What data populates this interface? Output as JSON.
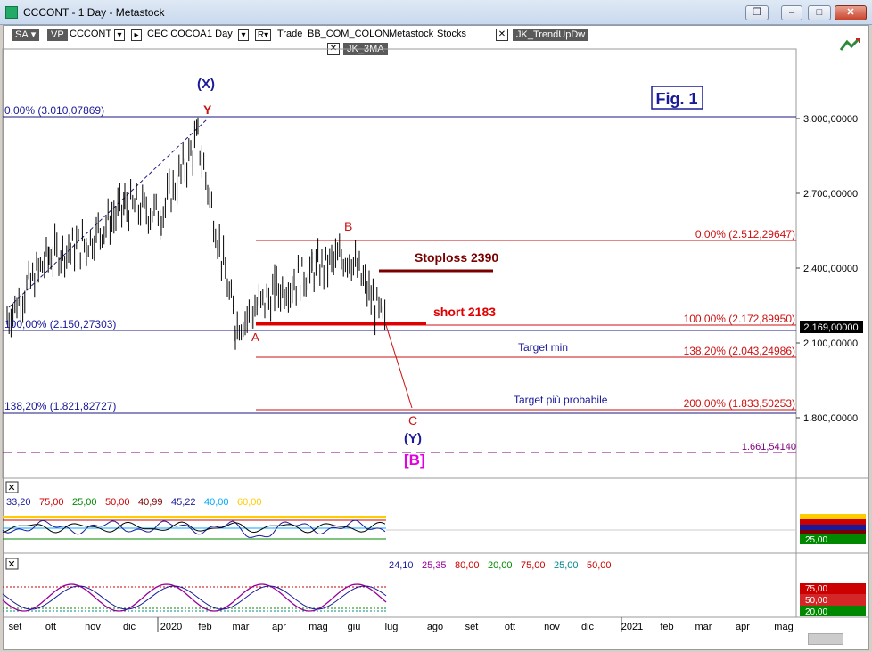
{
  "window": {
    "title": "CCCONT - 1 Day - Metastock",
    "buttons": [
      "restore-icon",
      "minimize-icon",
      "maximize-icon",
      "close-icon"
    ]
  },
  "toolbar": {
    "sa": "SA",
    "vp": "VP",
    "symbol": "CCCONT",
    "name": "CEC COCOA",
    "period": "1 Day",
    "r": "R",
    "trade": "Trade",
    "bb": "BB_COM_COLON",
    "metastock": "Metastock",
    "stocks": "Stocks",
    "expert1": "JK_TrendUpDw",
    "expert2": "JK_3MA",
    "close_glyph": "✕"
  },
  "annotations": {
    "fig": "Fig. 1",
    "wave_x": "(X)",
    "wave_y_top": "Y",
    "wave_a": "A",
    "wave_b": "B",
    "wave_c": "C",
    "wave_y_paren": "(Y)",
    "wave_b_bracket": "[B]",
    "stoploss": "Stoploss 2390",
    "short": "short 2183",
    "target_min": "Target min",
    "target_prob": "Target più probabile",
    "fib_0_left": "0,00% (3.010,07869)",
    "fib_100_left": "100,00% (2.150,27303)",
    "fib_138_left": "138,20% (1.821,82727)",
    "fib_0_right": "0,00% (2.512,29647)",
    "fib_100_right": "100,00% (2.172,89950)",
    "fib_138_right": "138,20% (2.043,24986)",
    "fib_200_right": "200,00% (1.833,50253)",
    "dashed_level": "1.661,54140"
  },
  "price_axis": {
    "ticks": [
      "3.000,00000",
      "2.700,00000",
      "2.400,00000",
      "2.100,00000",
      "1.800,00000"
    ],
    "current": "2.169,00000"
  },
  "indicator1": {
    "values": [
      "33,20",
      "75,00",
      "25,00",
      "50,00",
      "40,99",
      "45,22",
      "40,00",
      "60,00"
    ],
    "value_colors": [
      "#1a1a99",
      "#cc0000",
      "#008800",
      "#cc0000",
      "#7a0000",
      "#1a1a99",
      "#00aaff",
      "#ffcc00"
    ],
    "axis_labels": [
      "25,00"
    ]
  },
  "indicator2": {
    "values": [
      "24,10",
      "25,35",
      "80,00",
      "20,00",
      "75,00",
      "25,00",
      "50,00"
    ],
    "value_colors": [
      "#1a1a99",
      "#990099",
      "#cc0000",
      "#008800",
      "#cc0000",
      "#008888",
      "#cc0000"
    ],
    "axis_labels": [
      "75,00",
      "50,00",
      "20,00"
    ]
  },
  "time_axis": {
    "labels": [
      "set",
      "ott",
      "nov",
      "dic",
      "2020",
      "feb",
      "mar",
      "apr",
      "mag",
      "giu",
      "lug",
      "ago",
      "set",
      "ott",
      "nov",
      "dic",
      "2021",
      "feb",
      "mar",
      "apr",
      "mag"
    ]
  },
  "chart_data": {
    "type": "line",
    "x": [
      "2019-09",
      "2019-10",
      "2019-11",
      "2019-12",
      "2020-01",
      "2020-02",
      "2020-03",
      "2020-04",
      "2020-05",
      "2020-06",
      "2020-07"
    ],
    "series": [
      {
        "values": [
          2200,
          2450,
          2500,
          2650,
          2620,
          2920,
          2170,
          2300,
          2390,
          2450,
          2169
        ]
      }
    ],
    "ylim": [
      1560,
      3100
    ],
    "grid": false
  }
}
